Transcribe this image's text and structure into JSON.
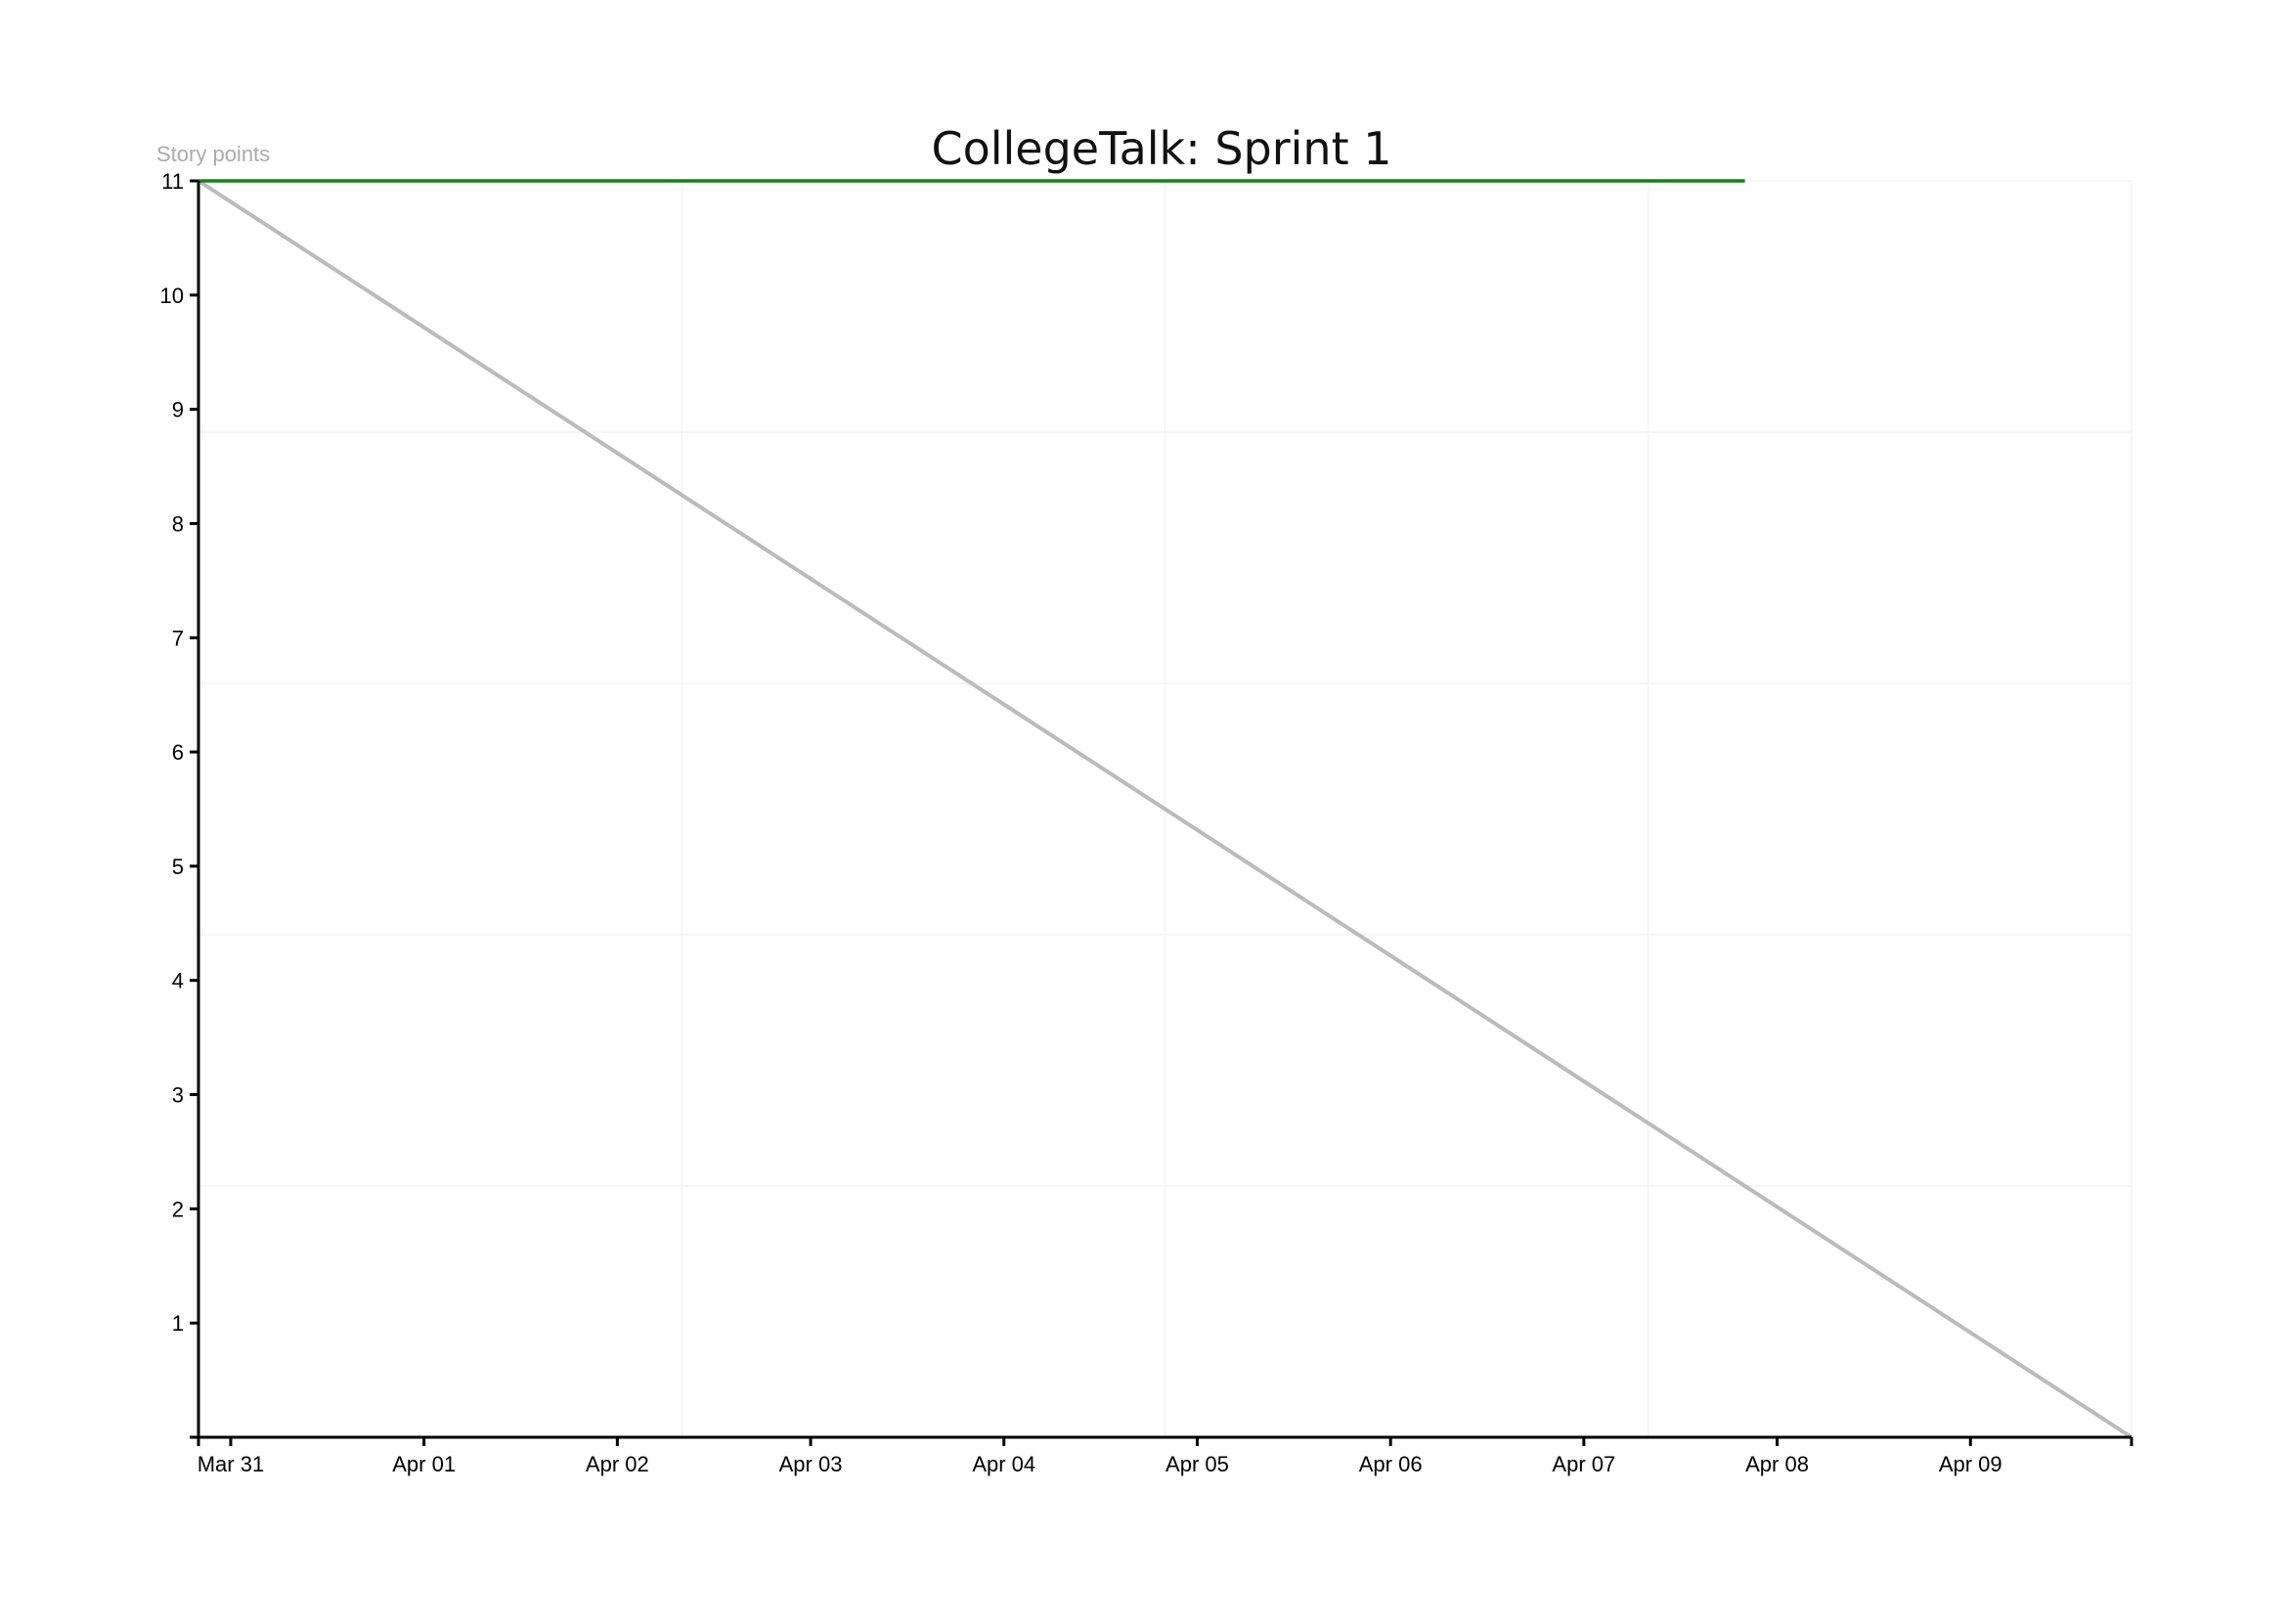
{
  "chart_data": {
    "type": "line",
    "title": "CollegeTalk: Sprint 1",
    "xlabel": "",
    "ylabel": "Story points",
    "x_ticks": [
      "Mar 31",
      "Apr 01",
      "Apr 02",
      "Apr 03",
      "Apr 04",
      "Apr 05",
      "Apr 06",
      "Apr 07",
      "Apr 08",
      "Apr 09"
    ],
    "y_ticks": [
      1,
      2,
      3,
      4,
      5,
      6,
      7,
      8,
      9,
      10,
      11
    ],
    "xlim": [
      "2020-03-30T20:00",
      "2020-04-09T20:00"
    ],
    "ylim": [
      0,
      11
    ],
    "grid": true,
    "legend": "none",
    "series": [
      {
        "role": "ideal",
        "color": "#bbbbbb",
        "x": [
          "2020-03-30T20:00",
          "2020-04-09T20:00"
        ],
        "y": [
          11,
          0
        ]
      },
      {
        "role": "actual",
        "color": "#1a7f1a",
        "x": [
          "2020-03-30T20:00",
          "2020-04-07T20:00"
        ],
        "y": [
          11,
          11
        ]
      }
    ]
  }
}
